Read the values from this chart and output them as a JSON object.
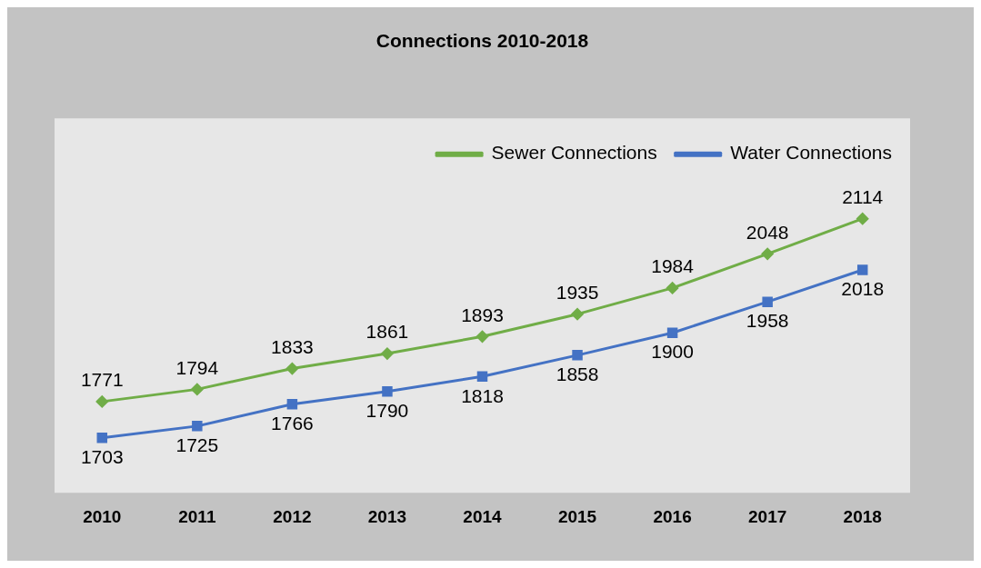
{
  "chart_data": {
    "type": "line",
    "title": "Connections 2010-2018",
    "categories": [
      "2010",
      "2011",
      "2012",
      "2013",
      "2014",
      "2015",
      "2016",
      "2017",
      "2018"
    ],
    "series": [
      {
        "name": "Sewer Connections",
        "color": "#70ad47",
        "marker": "diamond",
        "values": [
          1771,
          1794,
          1833,
          1861,
          1893,
          1935,
          1984,
          2048,
          2114
        ]
      },
      {
        "name": "Water Connections",
        "color": "#4472c4",
        "marker": "square",
        "values": [
          1703,
          1725,
          1766,
          1790,
          1818,
          1858,
          1900,
          1958,
          2018
        ]
      }
    ],
    "data_labels": true,
    "legend": "top right",
    "grid": false,
    "line_style": "solid"
  }
}
